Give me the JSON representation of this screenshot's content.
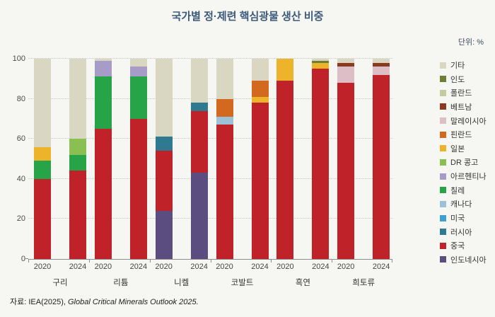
{
  "header": {
    "title": "국가별 정·제련 핵심광물 생산 비중",
    "unit_label": "단위: %"
  },
  "source": {
    "prefix": "자료: IEA(2025), ",
    "work": "Global Critical Minerals Outlook 2025."
  },
  "chart_data": {
    "type": "bar",
    "stacked": true,
    "title": "국가별 정·제련 핵심광물 생산 비중",
    "unit": "%",
    "ylim": [
      0,
      100
    ],
    "yticks": [
      0,
      20,
      40,
      60,
      80,
      100
    ],
    "grid": "dotted-horizontal",
    "legend_position": "right",
    "colors": {
      "other": "#d9d6c2",
      "india": "#6e7f35",
      "poland": "#c2cc9e",
      "vietnam": "#8c3b20",
      "malaysia": "#ddbec6",
      "finland": "#d2691f",
      "japan": "#ecb32b",
      "dr_congo": "#8abf51",
      "argentina": "#a79cc8",
      "chile": "#27a348",
      "canada": "#9dc2d8",
      "usa": "#3f9fd0",
      "russia": "#2f7a90",
      "china": "#bf2229",
      "indonesia": "#5b4d80"
    },
    "legend": [
      {
        "label": "기타",
        "key": "other"
      },
      {
        "label": "인도",
        "key": "india"
      },
      {
        "label": "폴란드",
        "key": "poland"
      },
      {
        "label": "베트남",
        "key": "vietnam"
      },
      {
        "label": "말레이시아",
        "key": "malaysia"
      },
      {
        "label": "핀란드",
        "key": "finland"
      },
      {
        "label": "일본",
        "key": "japan"
      },
      {
        "label": "DR 콩고",
        "key": "dr_congo"
      },
      {
        "label": "아르헨티나",
        "key": "argentina"
      },
      {
        "label": "칠레",
        "key": "chile"
      },
      {
        "label": "캐나다",
        "key": "canada"
      },
      {
        "label": "미국",
        "key": "usa"
      },
      {
        "label": "러시아",
        "key": "russia"
      },
      {
        "label": "중국",
        "key": "china"
      },
      {
        "label": "인도네시아",
        "key": "indonesia"
      }
    ],
    "groups": [
      {
        "label": "구리",
        "bars": [
          {
            "year": "2020",
            "segments": [
              {
                "key": "china",
                "value": 40
              },
              {
                "key": "chile",
                "value": 9
              },
              {
                "key": "japan",
                "value": 7
              },
              {
                "key": "other",
                "value": 44
              }
            ]
          },
          {
            "year": "2024",
            "segments": [
              {
                "key": "china",
                "value": 44
              },
              {
                "key": "chile",
                "value": 8
              },
              {
                "key": "dr_congo",
                "value": 8
              },
              {
                "key": "other",
                "value": 40
              }
            ]
          }
        ]
      },
      {
        "label": "리튬",
        "bars": [
          {
            "year": "2020",
            "segments": [
              {
                "key": "china",
                "value": 65
              },
              {
                "key": "chile",
                "value": 26
              },
              {
                "key": "argentina",
                "value": 8
              },
              {
                "key": "other",
                "value": 1
              }
            ]
          },
          {
            "year": "2024",
            "segments": [
              {
                "key": "china",
                "value": 70
              },
              {
                "key": "chile",
                "value": 21
              },
              {
                "key": "argentina",
                "value": 5
              },
              {
                "key": "other",
                "value": 4
              }
            ]
          }
        ]
      },
      {
        "label": "니켈",
        "bars": [
          {
            "year": "2020",
            "segments": [
              {
                "key": "indonesia",
                "value": 24
              },
              {
                "key": "china",
                "value": 30
              },
              {
                "key": "russia",
                "value": 7
              },
              {
                "key": "other",
                "value": 39
              }
            ]
          },
          {
            "year": "2024",
            "segments": [
              {
                "key": "indonesia",
                "value": 43
              },
              {
                "key": "china",
                "value": 31
              },
              {
                "key": "russia",
                "value": 4
              },
              {
                "key": "other",
                "value": 22
              }
            ]
          }
        ]
      },
      {
        "label": "코발트",
        "bars": [
          {
            "year": "2020",
            "segments": [
              {
                "key": "china",
                "value": 67
              },
              {
                "key": "canada",
                "value": 4
              },
              {
                "key": "finland",
                "value": 9
              },
              {
                "key": "other",
                "value": 20
              }
            ]
          },
          {
            "year": "2024",
            "segments": [
              {
                "key": "china",
                "value": 78
              },
              {
                "key": "japan",
                "value": 3
              },
              {
                "key": "finland",
                "value": 8
              },
              {
                "key": "other",
                "value": 11
              }
            ]
          }
        ]
      },
      {
        "label": "흑연",
        "bars": [
          {
            "year": "2020",
            "segments": [
              {
                "key": "china",
                "value": 89
              },
              {
                "key": "japan",
                "value": 11
              }
            ]
          },
          {
            "year": "2024",
            "segments": [
              {
                "key": "china",
                "value": 95
              },
              {
                "key": "japan",
                "value": 3
              },
              {
                "key": "india",
                "value": 1
              },
              {
                "key": "other",
                "value": 1
              }
            ]
          }
        ]
      },
      {
        "label": "희토류",
        "bars": [
          {
            "year": "2020",
            "segments": [
              {
                "key": "china",
                "value": 88
              },
              {
                "key": "malaysia",
                "value": 8
              },
              {
                "key": "vietnam",
                "value": 2
              },
              {
                "key": "other",
                "value": 2
              }
            ]
          },
          {
            "year": "2024",
            "segments": [
              {
                "key": "china",
                "value": 92
              },
              {
                "key": "malaysia",
                "value": 4
              },
              {
                "key": "vietnam",
                "value": 2
              },
              {
                "key": "other",
                "value": 2
              }
            ]
          }
        ]
      }
    ]
  }
}
